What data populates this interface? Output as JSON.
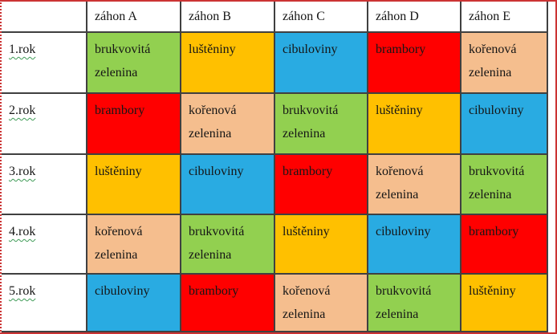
{
  "colors": {
    "frame_border": "#cc3333",
    "grid_line": "#404040",
    "spellcheck_underline": "#3f9b57",
    "text": "#161616",
    "header_background": "#ffffff",
    "row_label_background": "#ffffff"
  },
  "table": {
    "corner_label": "",
    "columns": [
      "záhon A",
      "záhon B",
      "záhon C",
      "záhon D",
      "záhon E"
    ],
    "crop_colors": {
      "brukvovita": "#92D050",
      "lusteniny": "#FFC000",
      "cibuloviny": "#29ABE2",
      "brambory": "#FF0000",
      "korenova": "#F5BE8E"
    },
    "rows": [
      {
        "label": "1.rok",
        "cells": [
          {
            "text": "brukvovitá zelenina",
            "crop": "brukvovita"
          },
          {
            "text": "luštěniny",
            "crop": "lusteniny"
          },
          {
            "text": "cibuloviny",
            "crop": "cibuloviny"
          },
          {
            "text": "brambory",
            "crop": "brambory"
          },
          {
            "text": "kořenová zelenina",
            "crop": "korenova"
          }
        ]
      },
      {
        "label": "2.rok",
        "cells": [
          {
            "text": "brambory",
            "crop": "brambory"
          },
          {
            "text": "kořenová zelenina",
            "crop": "korenova"
          },
          {
            "text": "brukvovitá zelenina",
            "crop": "brukvovita"
          },
          {
            "text": "luštěniny",
            "crop": "lusteniny"
          },
          {
            "text": "cibuloviny",
            "crop": "cibuloviny"
          }
        ]
      },
      {
        "label": "3.rok",
        "cells": [
          {
            "text": "luštěniny",
            "crop": "lusteniny"
          },
          {
            "text": "cibuloviny",
            "crop": "cibuloviny"
          },
          {
            "text": "brambory",
            "crop": "brambory"
          },
          {
            "text": "kořenová zelenina",
            "crop": "korenova"
          },
          {
            "text": "brukvovitá zelenina",
            "crop": "brukvovita"
          }
        ]
      },
      {
        "label": "4.rok",
        "cells": [
          {
            "text": "kořenová zelenina",
            "crop": "korenova"
          },
          {
            "text": "brukvovitá zelenina",
            "crop": "brukvovita"
          },
          {
            "text": "luštěniny",
            "crop": "lusteniny"
          },
          {
            "text": "cibuloviny",
            "crop": "cibuloviny"
          },
          {
            "text": "brambory",
            "crop": "brambory"
          }
        ]
      },
      {
        "label": "5.rok",
        "cells": [
          {
            "text": "cibuloviny",
            "crop": "cibuloviny"
          },
          {
            "text": "brambory",
            "crop": "brambory"
          },
          {
            "text": "kořenová zelenina",
            "crop": "korenova"
          },
          {
            "text": "brukvovitá zelenina",
            "crop": "brukvovita"
          },
          {
            "text": "luštěniny",
            "crop": "lusteniny"
          }
        ]
      }
    ]
  }
}
